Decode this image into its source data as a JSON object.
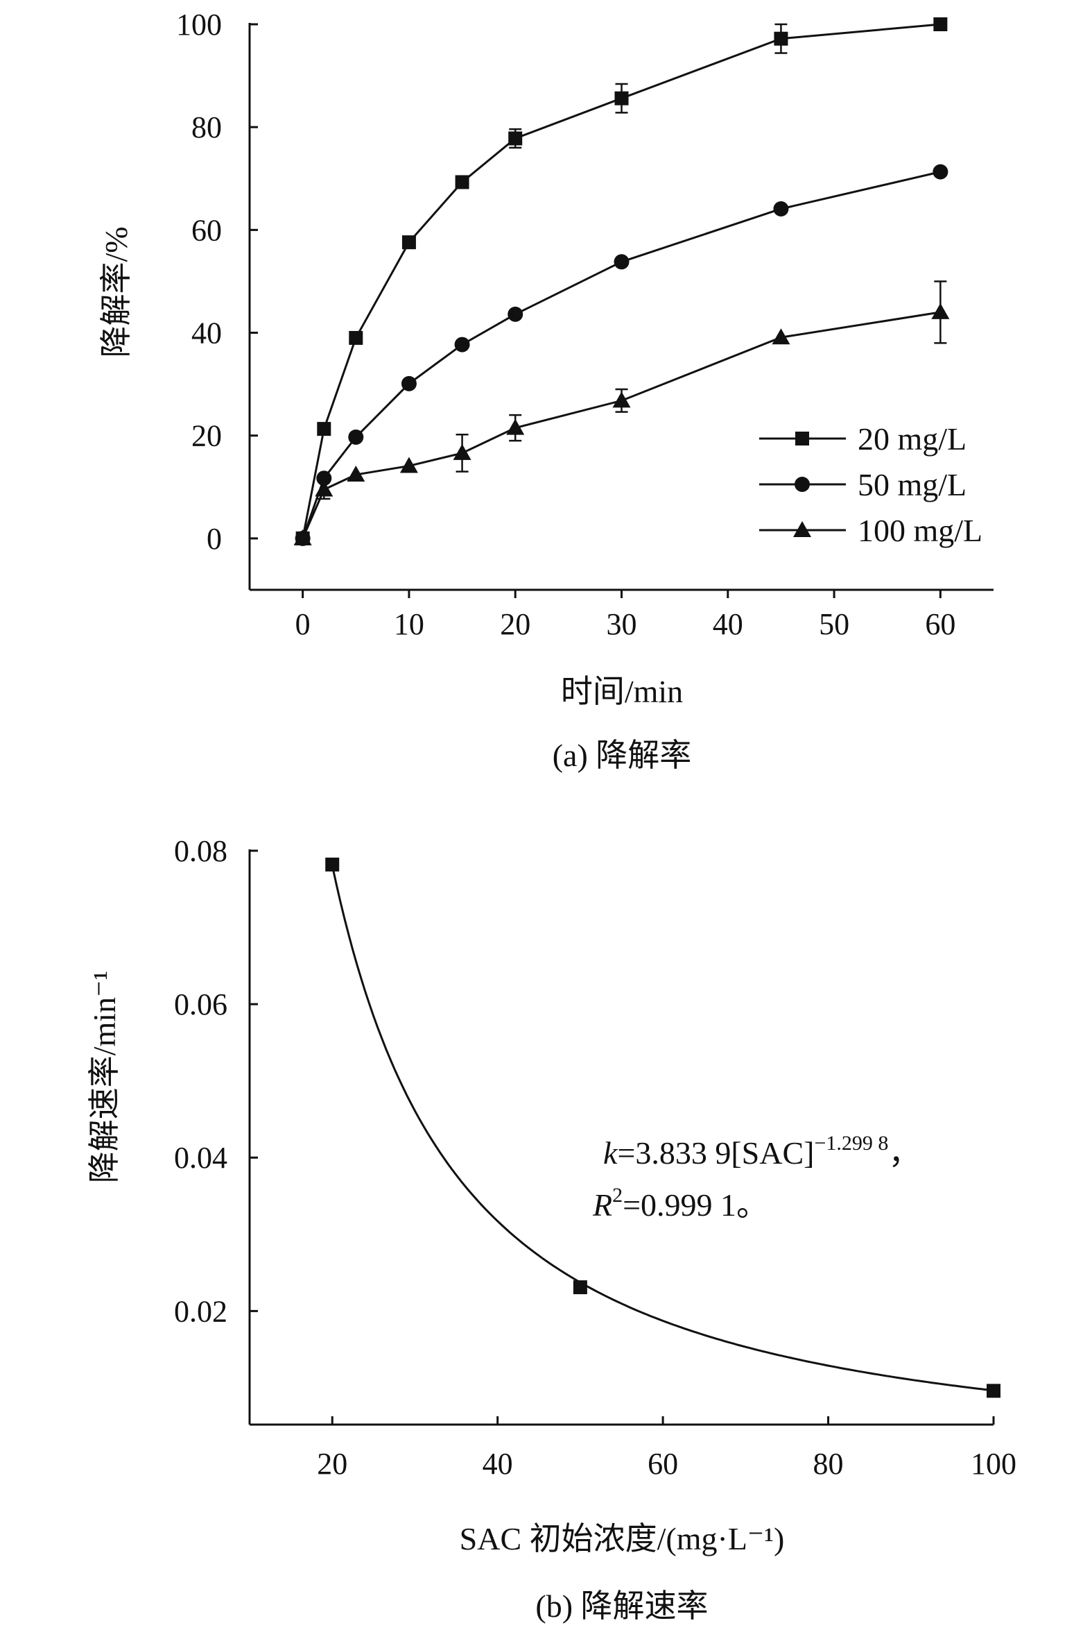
{
  "chart_data": [
    {
      "type": "line",
      "caption": "(a) 降解率",
      "xlabel": "时间/min",
      "ylabel": "降解率/%",
      "xlim": [
        -5,
        65
      ],
      "ylim": [
        -10,
        100
      ],
      "xticks": [
        0,
        10,
        20,
        30,
        40,
        50,
        60
      ],
      "yticks": [
        0,
        20,
        40,
        60,
        80,
        100
      ],
      "grid": false,
      "legend_position": "bottom-right",
      "x": [
        0,
        2,
        5,
        10,
        15,
        20,
        30,
        45,
        60
      ],
      "series": [
        {
          "name": "20 mg/L",
          "marker": "square",
          "values": [
            0,
            21.3,
            39.0,
            57.6,
            69.3,
            77.8,
            85.6,
            97.2,
            100.0
          ],
          "errors": [
            0,
            0,
            0,
            0,
            0,
            1.8,
            2.8,
            2.8,
            0
          ]
        },
        {
          "name": "50 mg/L",
          "marker": "circle",
          "values": [
            0,
            11.7,
            19.7,
            30.1,
            37.7,
            43.6,
            53.8,
            64.1,
            71.3
          ],
          "errors": [
            0,
            0,
            0,
            0,
            0,
            0,
            0,
            0,
            0
          ]
        },
        {
          "name": "100 mg/L",
          "marker": "triangle",
          "values": [
            0,
            9.5,
            12.4,
            14.1,
            16.6,
            21.5,
            26.8,
            39.1,
            44.0
          ],
          "errors": [
            0,
            1.8,
            0,
            0,
            3.6,
            2.5,
            2.2,
            0,
            6.0
          ]
        }
      ]
    },
    {
      "type": "scatter",
      "caption": "(b) 降解速率",
      "xlabel": "SAC 初始浓度/(mg·L⁻¹)",
      "ylabel": "降解速率/min⁻¹",
      "xlim": [
        10,
        100
      ],
      "ylim": [
        0.0052,
        0.08
      ],
      "xticks": [
        20,
        40,
        60,
        80,
        100
      ],
      "yticks": [
        0.02,
        0.04,
        0.06,
        0.08
      ],
      "ytick_labels": [
        "0.02",
        "0.04",
        "0.06",
        "0.08"
      ],
      "grid": false,
      "x": [
        20,
        50,
        100
      ],
      "values": [
        0.0782,
        0.0231,
        0.0096
      ],
      "fit": {
        "coefficient": 3.8339,
        "exponent": -1.2998,
        "r_squared": 0.9991
      },
      "equation": {
        "k_var": "k",
        "k_rest": "=3.833 9[SAC]",
        "k_exp": "−1.299 8",
        "k_tail": "，",
        "r_var": "R",
        "r_sup": "2",
        "r_rest": "=0.999 1。"
      }
    }
  ]
}
